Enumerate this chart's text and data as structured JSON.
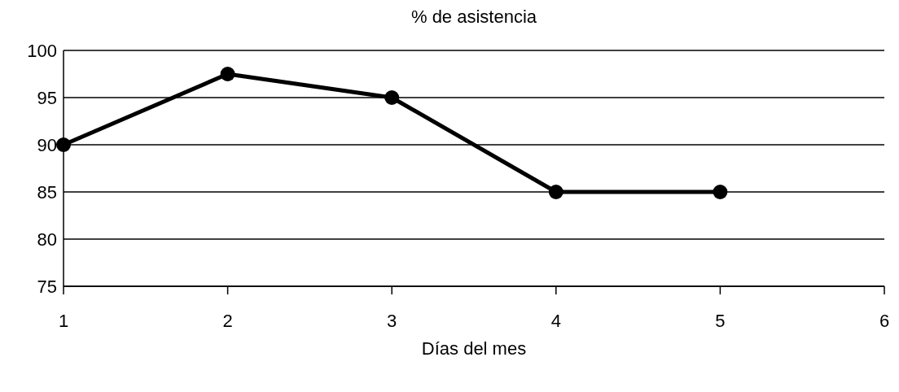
{
  "chart_data": {
    "type": "line",
    "title": "% de asistencia",
    "xlabel": "Días del mes",
    "categories": [
      "1",
      "2",
      "3",
      "4",
      "5",
      "6"
    ],
    "series": [
      {
        "color": "#000000",
        "values": [
          90,
          97.5,
          95,
          85,
          85,
          null
        ]
      }
    ],
    "ylim": [
      75,
      100
    ],
    "yticks": [
      75,
      80,
      85,
      90,
      95,
      100
    ],
    "grid": "y",
    "marker": "circle",
    "line_style": "solid"
  }
}
